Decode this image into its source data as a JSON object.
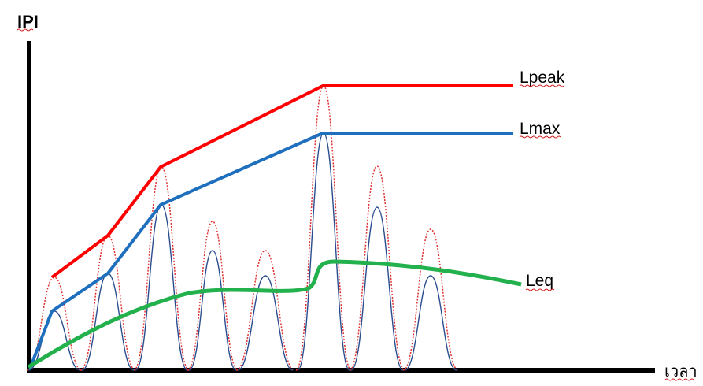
{
  "axes": {
    "y_label": "IPI",
    "x_label": "เวลา"
  },
  "curves": {
    "lpeak": {
      "label": "Lpeak",
      "color": "#ff0000"
    },
    "lmax": {
      "label": "Lmax",
      "color": "#1f6fbf"
    },
    "leq": {
      "label": "Leq",
      "color": "#22b14c"
    }
  },
  "signal": {
    "peak_color": "#e03030",
    "max_color": "#2a4d8f"
  }
}
